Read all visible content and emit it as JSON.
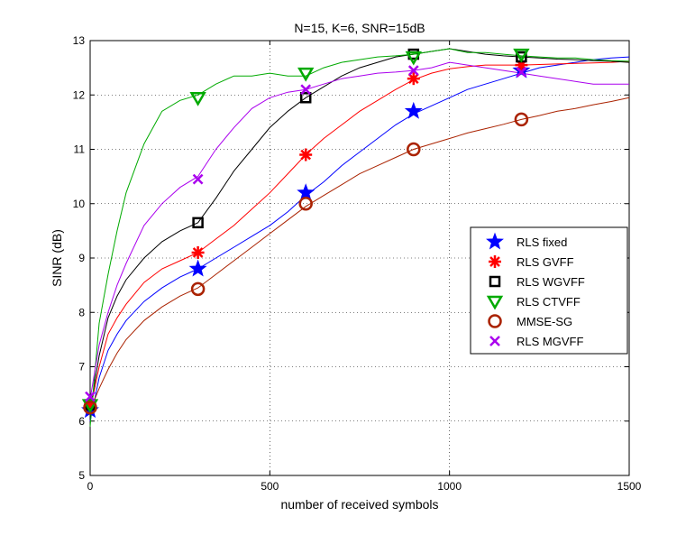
{
  "chart_data": {
    "type": "line",
    "title": "N=15, K=6, SNR=15dB",
    "xlabel": "number of received symbols",
    "ylabel": "SINR (dB)",
    "xlim": [
      0,
      1500
    ],
    "ylim": [
      5,
      13
    ],
    "xticks": [
      0,
      500,
      1000,
      1500
    ],
    "yticks": [
      5,
      6,
      7,
      8,
      9,
      10,
      11,
      12,
      13
    ],
    "grid": true,
    "legend_position": "center-right",
    "x": [
      0,
      25,
      50,
      75,
      100,
      150,
      200,
      250,
      300,
      350,
      400,
      450,
      500,
      550,
      600,
      650,
      700,
      750,
      800,
      850,
      900,
      950,
      1000,
      1050,
      1100,
      1150,
      1200,
      1250,
      1300,
      1350,
      1400,
      1450,
      1500
    ],
    "series": [
      {
        "name": "RLS fixed",
        "color": "#0000ff",
        "marker": "star",
        "values": [
          6.0,
          6.8,
          7.3,
          7.6,
          7.85,
          8.2,
          8.45,
          8.65,
          8.8,
          9.0,
          9.2,
          9.4,
          9.6,
          9.85,
          10.15,
          10.4,
          10.7,
          10.95,
          11.2,
          11.45,
          11.65,
          11.8,
          11.95,
          12.1,
          12.2,
          12.3,
          12.4,
          12.5,
          12.55,
          12.6,
          12.65,
          12.68,
          12.7
        ],
        "marker_x": [
          0,
          300,
          600,
          900,
          1200
        ],
        "marker_y": [
          6.2,
          8.8,
          10.2,
          11.7,
          12.45
        ]
      },
      {
        "name": "RLS GVFF",
        "color": "#ff0000",
        "marker": "asterisk",
        "values": [
          6.2,
          7.0,
          7.6,
          7.9,
          8.15,
          8.55,
          8.8,
          8.95,
          9.1,
          9.35,
          9.6,
          9.9,
          10.2,
          10.55,
          10.9,
          11.2,
          11.45,
          11.7,
          11.9,
          12.1,
          12.28,
          12.4,
          12.48,
          12.52,
          12.55,
          12.55,
          12.55,
          12.56,
          12.57,
          12.58,
          12.59,
          12.6,
          12.62
        ],
        "marker_x": [
          0,
          300,
          600,
          900,
          1200
        ],
        "marker_y": [
          6.3,
          9.1,
          10.9,
          12.3,
          12.55
        ]
      },
      {
        "name": "RLS WGVFF",
        "color": "#000000",
        "marker": "square",
        "values": [
          6.2,
          7.2,
          7.9,
          8.3,
          8.6,
          9.0,
          9.3,
          9.5,
          9.65,
          10.1,
          10.6,
          11.0,
          11.4,
          11.7,
          11.95,
          12.15,
          12.35,
          12.5,
          12.6,
          12.7,
          12.75,
          12.8,
          12.85,
          12.8,
          12.75,
          12.72,
          12.7,
          12.68,
          12.66,
          12.65,
          12.63,
          12.62,
          12.6
        ],
        "marker_x": [
          0,
          300,
          600,
          900,
          1200
        ],
        "marker_y": [
          6.3,
          9.65,
          11.95,
          12.75,
          12.7
        ]
      },
      {
        "name": "RLS CTVFF",
        "color": "#00aa00",
        "marker": "triangle-down",
        "values": [
          5.9,
          7.8,
          8.7,
          9.5,
          10.2,
          11.1,
          11.7,
          11.9,
          12.0,
          12.2,
          12.35,
          12.35,
          12.4,
          12.35,
          12.35,
          12.5,
          12.6,
          12.65,
          12.7,
          12.72,
          12.75,
          12.8,
          12.85,
          12.78,
          12.78,
          12.75,
          12.72,
          12.7,
          12.68,
          12.68,
          12.65,
          12.63,
          12.62
        ],
        "marker_x": [
          0,
          300,
          600,
          900,
          1200
        ],
        "marker_y": [
          6.3,
          11.95,
          12.4,
          12.7,
          12.75
        ]
      },
      {
        "name": "MMSE-SG",
        "color": "#aa2200",
        "marker": "circle",
        "values": [
          6.2,
          6.6,
          6.95,
          7.25,
          7.5,
          7.85,
          8.1,
          8.3,
          8.45,
          8.7,
          8.95,
          9.2,
          9.45,
          9.7,
          9.95,
          10.15,
          10.35,
          10.55,
          10.7,
          10.85,
          11.0,
          11.1,
          11.2,
          11.3,
          11.38,
          11.46,
          11.55,
          11.62,
          11.7,
          11.75,
          11.82,
          11.88,
          11.95
        ],
        "marker_x": [
          0,
          300,
          600,
          900,
          1200
        ],
        "marker_y": [
          6.25,
          8.43,
          10.0,
          11.0,
          11.55
        ]
      },
      {
        "name": "RLS MGVFF",
        "color": "#aa00ee",
        "marker": "x",
        "values": [
          6.4,
          7.4,
          8.0,
          8.5,
          8.9,
          9.6,
          10.0,
          10.3,
          10.5,
          11.0,
          11.4,
          11.75,
          11.95,
          12.05,
          12.1,
          12.2,
          12.3,
          12.35,
          12.4,
          12.42,
          12.45,
          12.5,
          12.6,
          12.55,
          12.5,
          12.45,
          12.4,
          12.35,
          12.3,
          12.25,
          12.2,
          12.2,
          12.2
        ],
        "marker_x": [
          0,
          300,
          600,
          900,
          1200
        ],
        "marker_y": [
          6.45,
          10.45,
          12.1,
          12.45,
          12.42
        ]
      }
    ]
  }
}
